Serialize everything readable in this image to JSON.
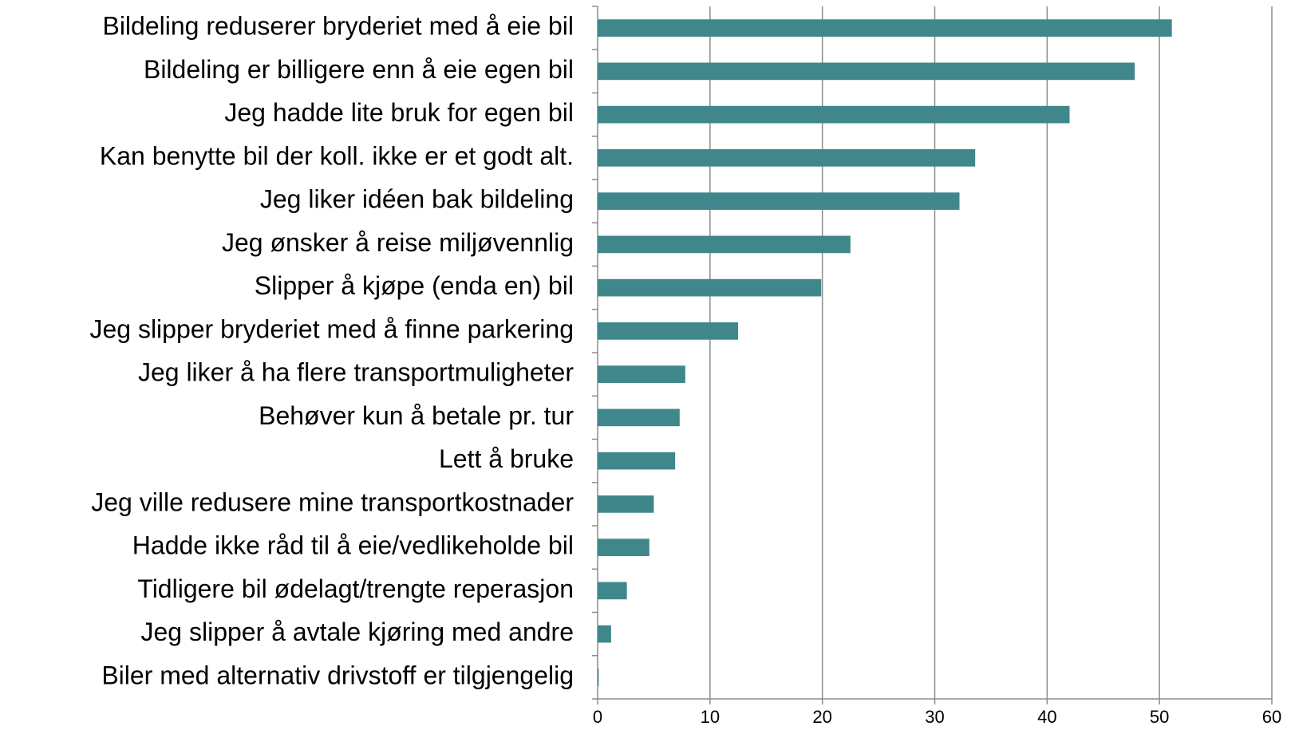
{
  "chart_data": {
    "type": "barh",
    "categories": [
      "Bildeling reduserer bryderiet med å eie bil",
      "Bildeling er billigere enn å eie egen bil",
      "Jeg hadde lite bruk for egen bil",
      "Kan benytte bil der koll. ikke er et godt alt.",
      "Jeg liker idéen bak bildeling",
      "Jeg ønsker å reise miljøvennlig",
      "Slipper å kjøpe (enda en) bil",
      "Jeg slipper bryderiet med å finne parkering",
      "Jeg liker å ha flere transportmuligheter",
      "Behøver kun å betale pr. tur",
      "Lett å bruke",
      "Jeg ville redusere mine transportkostnader",
      "Hadde ikke råd til å eie/vedlikeholde bil",
      "Tidligere bil ødelagt/trengte reperasjon",
      "Jeg slipper å avtale kjøring med andre",
      "Biler med alternativ drivstoff er tilgjengelig"
    ],
    "values": [
      51.1,
      47.8,
      42.0,
      33.6,
      32.2,
      22.5,
      19.9,
      12.5,
      7.8,
      7.3,
      6.9,
      5.0,
      4.6,
      2.6,
      1.2,
      0.1
    ],
    "color": "#3f878a",
    "xlim": [
      0,
      60
    ],
    "xticks": [
      0,
      10,
      20,
      30,
      40,
      50,
      60
    ],
    "grid": true
  }
}
